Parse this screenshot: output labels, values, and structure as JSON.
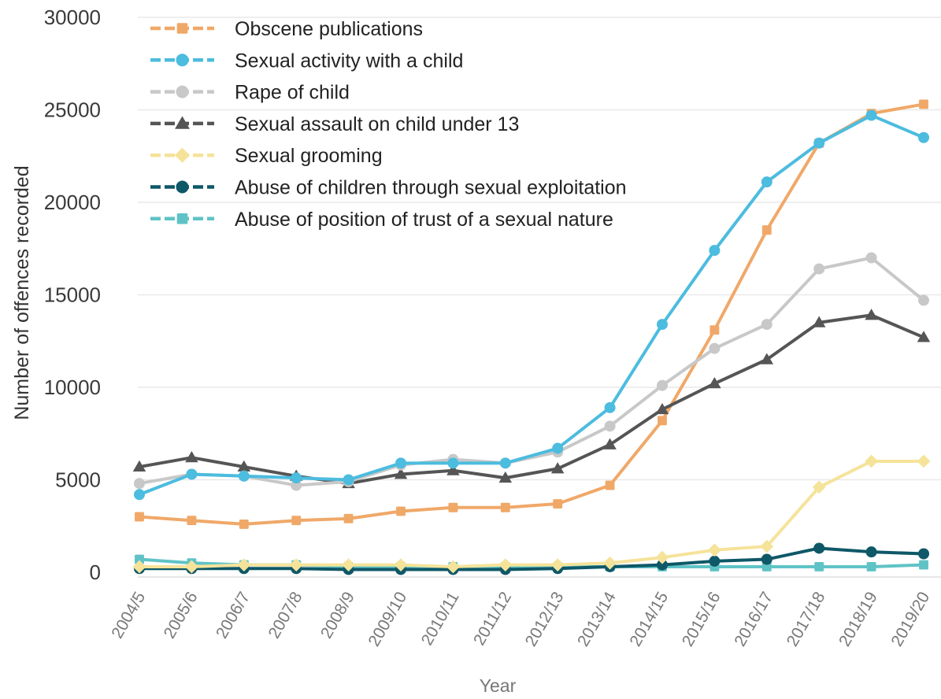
{
  "chart_data": {
    "type": "line",
    "title": "",
    "xlabel": "Year",
    "ylabel": "Number of offences recorded",
    "ylim": [
      0,
      30000
    ],
    "yticks": [
      0,
      5000,
      10000,
      15000,
      20000,
      25000,
      30000
    ],
    "grid": true,
    "legend_position": "top-left",
    "categories": [
      "2004/5",
      "2005/6",
      "2006/7",
      "2007/8",
      "2008/9",
      "2009/10",
      "2010/11",
      "2011/12",
      "2012/13",
      "2013/14",
      "2014/15",
      "2015/16",
      "2016/17",
      "2017/18",
      "2018/19",
      "2019/20"
    ],
    "series": [
      {
        "name": "Obscene publications",
        "color": "#f0a868",
        "marker": "square",
        "values": [
          3000,
          2800,
          2600,
          2800,
          2900,
          3300,
          3500,
          3500,
          3700,
          4700,
          8200,
          13100,
          18500,
          23200,
          24800,
          25300
        ]
      },
      {
        "name": "Sexual activity with a child",
        "color": "#4cbcdf",
        "marker": "circle",
        "values": [
          4200,
          5300,
          5200,
          5100,
          5000,
          5900,
          5900,
          5900,
          6700,
          8900,
          13400,
          17400,
          21100,
          23200,
          24700,
          23500
        ]
      },
      {
        "name": "Rape of child",
        "color": "#c8c8c8",
        "marker": "circle",
        "values": [
          4800,
          5300,
          5200,
          4700,
          4900,
          5800,
          6100,
          5900,
          6500,
          7900,
          10100,
          12100,
          13400,
          16400,
          17000,
          14700
        ]
      },
      {
        "name": "Sexual assault on child under 13",
        "color": "#555555",
        "marker": "triangle",
        "values": [
          5700,
          6200,
          5700,
          5200,
          4800,
          5300,
          5500,
          5100,
          5600,
          6900,
          8800,
          10200,
          11500,
          13500,
          13900,
          12700
        ]
      },
      {
        "name": "Sexual grooming",
        "color": "#f5e39a",
        "marker": "diamond",
        "values": [
          300,
          300,
          400,
          400,
          400,
          400,
          300,
          400,
          400,
          500,
          800,
          1200,
          1400,
          4600,
          6000,
          6000
        ]
      },
      {
        "name": "Abuse of children through sexual exploitation",
        "color": "#0e5868",
        "marker": "circle",
        "values": [
          200,
          200,
          200,
          200,
          150,
          150,
          150,
          150,
          200,
          300,
          400,
          600,
          700,
          1300,
          1100,
          1000
        ]
      },
      {
        "name": "Abuse of position of trust of a sexual nature",
        "color": "#5fc3c6",
        "marker": "square",
        "values": [
          700,
          500,
          400,
          400,
          300,
          300,
          300,
          300,
          300,
          300,
          300,
          300,
          300,
          300,
          300,
          400
        ]
      }
    ]
  }
}
